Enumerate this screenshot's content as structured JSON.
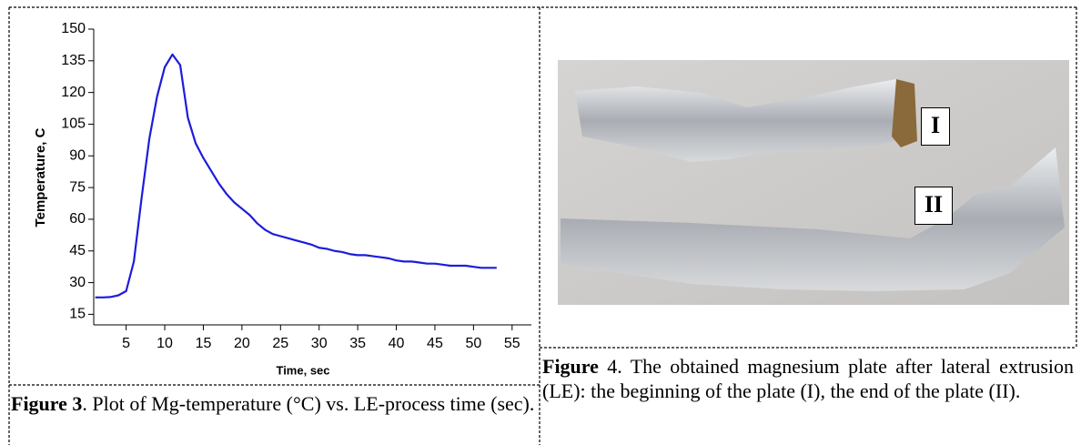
{
  "chart_data": {
    "type": "line",
    "xlabel": "Time, sec",
    "ylabel": "Temperature, C",
    "x": [
      1,
      2,
      3,
      4,
      5,
      6,
      7,
      8,
      9,
      10,
      11,
      12,
      13,
      14,
      15,
      16,
      17,
      18,
      19,
      20,
      21,
      22,
      23,
      24,
      25,
      26,
      27,
      28,
      29,
      30,
      31,
      32,
      33,
      34,
      35,
      36,
      37,
      38,
      39,
      40,
      41,
      42,
      43,
      44,
      45,
      46,
      47,
      48,
      49,
      50,
      51,
      52,
      53
    ],
    "series": [
      {
        "color": "#1c1cdc",
        "values": [
          23,
          23,
          23.2,
          24,
          26,
          40,
          70,
          98,
          118,
          132,
          138,
          133,
          108,
          96,
          89,
          83,
          77,
          72,
          68,
          65,
          62,
          58,
          55,
          53,
          52,
          51,
          50,
          49,
          48,
          46.5,
          46,
          45,
          44.5,
          43.5,
          43,
          43,
          42.5,
          42,
          41.5,
          40.5,
          40,
          40,
          39.5,
          39,
          39,
          38.5,
          38,
          38,
          38,
          37.5,
          37,
          37,
          37
        ]
      }
    ],
    "xlim": [
      0.8,
      57.5
    ],
    "xticks": [
      5,
      10,
      15,
      20,
      25,
      30,
      35,
      40,
      45,
      50,
      55
    ],
    "ylim": [
      10,
      150
    ],
    "yticks": [
      15,
      30,
      45,
      60,
      75,
      90,
      105,
      120,
      135,
      150
    ]
  },
  "figure3": {
    "label": "Figure 3",
    "text": ". Plot of Mg-temperature (°C) vs. LE-process time (sec)."
  },
  "figure4": {
    "marks": [
      "I",
      "II"
    ],
    "label": "Figure",
    "text": " 4. The obtained magnesium plate after lateral extrusion (LE): the beginning of the plate (I), the end of the plate (II)."
  }
}
